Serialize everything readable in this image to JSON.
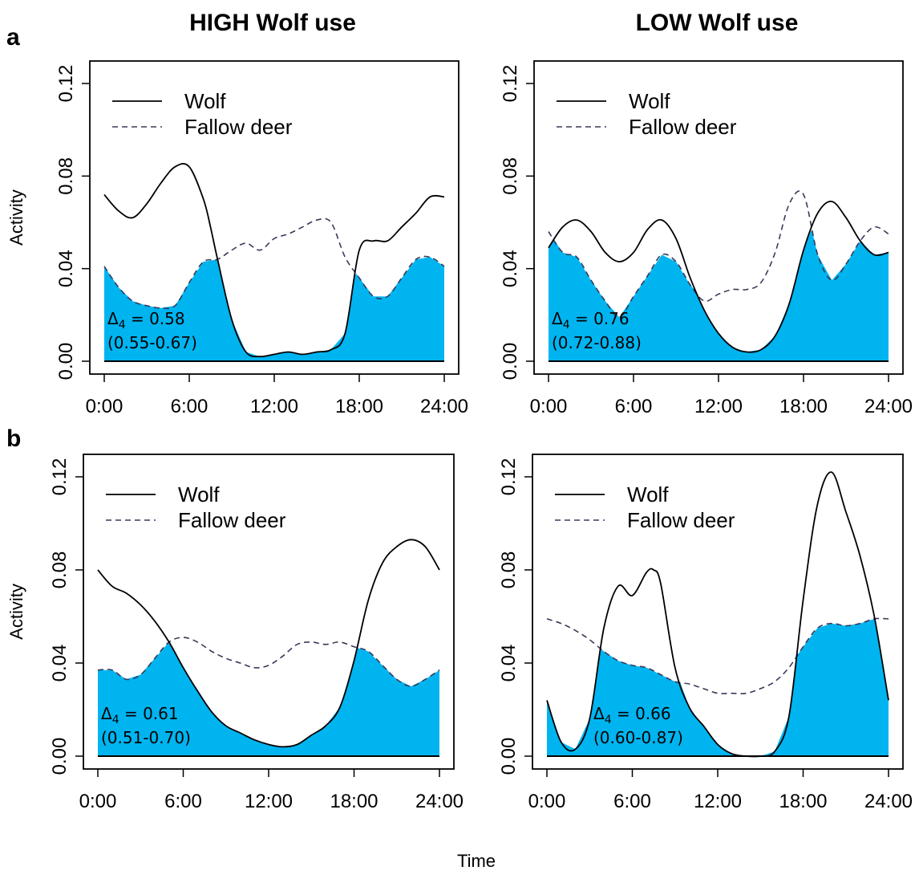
{
  "figure": {
    "col_titles": [
      "HIGH Wolf use",
      "LOW Wolf use"
    ],
    "row_labels": [
      "a",
      "b"
    ],
    "xlabel": "Time",
    "ylabel": "Activity",
    "xtick_labels": [
      "0:00",
      "6:00",
      "12:00",
      "18:00",
      "24:00"
    ],
    "ytick_labels": [
      "0.00",
      "0.04",
      "0.08",
      "0.12"
    ]
  },
  "colors": {
    "overlap_fill": "#00b4f0",
    "wolf_line": "#000000",
    "deer_line": "#3a3a5a"
  },
  "chart_data": [
    {
      "type": "line",
      "row": "a",
      "column": "HIGH Wolf use",
      "xlabel": "",
      "ylabel": "Activity",
      "xlim": [
        0,
        24
      ],
      "ylim": [
        0,
        0.12
      ],
      "xticks": [
        0,
        6,
        12,
        18,
        24
      ],
      "yticks": [
        0,
        0.04,
        0.08,
        0.12
      ],
      "legend_position": "top-left",
      "overlap_label": "Δ4 = 0.58",
      "overlap_ci": "(0.55-0.67)",
      "series": [
        {
          "name": "Wolf",
          "style": "solid",
          "x": [
            0,
            1,
            2,
            3,
            4,
            5,
            6,
            7,
            7.5,
            8,
            9,
            10,
            11,
            12,
            13,
            14,
            15,
            16,
            17,
            18,
            19,
            20,
            21,
            22,
            23,
            24
          ],
          "y": [
            0.072,
            0.065,
            0.062,
            0.068,
            0.077,
            0.084,
            0.084,
            0.07,
            0.058,
            0.044,
            0.018,
            0.004,
            0.002,
            0.003,
            0.004,
            0.003,
            0.004,
            0.005,
            0.012,
            0.048,
            0.052,
            0.052,
            0.058,
            0.064,
            0.071,
            0.071
          ]
        },
        {
          "name": "Fallow deer",
          "style": "dashed",
          "x": [
            0,
            1,
            2,
            3,
            4,
            5,
            6,
            7,
            8,
            9,
            10,
            11,
            12,
            13,
            14,
            15,
            16,
            17,
            18,
            19,
            20,
            21,
            22,
            23,
            24
          ],
          "y": [
            0.041,
            0.032,
            0.026,
            0.024,
            0.023,
            0.024,
            0.034,
            0.043,
            0.044,
            0.048,
            0.051,
            0.048,
            0.053,
            0.055,
            0.058,
            0.061,
            0.06,
            0.045,
            0.036,
            0.028,
            0.028,
            0.036,
            0.044,
            0.045,
            0.041
          ]
        }
      ]
    },
    {
      "type": "line",
      "row": "a",
      "column": "LOW Wolf use",
      "xlabel": "",
      "ylabel": "",
      "xlim": [
        0,
        24
      ],
      "ylim": [
        0,
        0.12
      ],
      "xticks": [
        0,
        6,
        12,
        18,
        24
      ],
      "yticks": [
        0,
        0.04,
        0.08,
        0.12
      ],
      "legend_position": "top-left",
      "overlap_label": "Δ4 = 0.76",
      "overlap_ci": "(0.72-0.88)",
      "series": [
        {
          "name": "Wolf",
          "style": "solid",
          "x": [
            0,
            1,
            2,
            3,
            4,
            5,
            6,
            7,
            8,
            9,
            10,
            11,
            12,
            13,
            14,
            15,
            16,
            17,
            18,
            19,
            20,
            21,
            22,
            23,
            24
          ],
          "y": [
            0.049,
            0.058,
            0.061,
            0.056,
            0.047,
            0.043,
            0.047,
            0.057,
            0.061,
            0.053,
            0.036,
            0.022,
            0.012,
            0.006,
            0.004,
            0.005,
            0.011,
            0.025,
            0.048,
            0.064,
            0.069,
            0.062,
            0.052,
            0.046,
            0.047
          ]
        },
        {
          "name": "Fallow deer",
          "style": "dashed",
          "x": [
            0,
            1,
            2,
            3,
            4,
            5,
            6,
            7,
            8,
            9,
            10,
            11,
            12,
            13,
            14,
            15,
            16,
            17,
            18,
            19,
            20,
            21,
            22,
            23,
            24
          ],
          "y": [
            0.056,
            0.047,
            0.045,
            0.035,
            0.026,
            0.019,
            0.028,
            0.037,
            0.046,
            0.043,
            0.033,
            0.026,
            0.029,
            0.031,
            0.031,
            0.034,
            0.047,
            0.068,
            0.072,
            0.046,
            0.035,
            0.042,
            0.052,
            0.058,
            0.055
          ]
        }
      ]
    },
    {
      "type": "line",
      "row": "b",
      "column": "HIGH Wolf use",
      "xlabel": "",
      "ylabel": "Activity",
      "xlim": [
        0,
        24
      ],
      "ylim": [
        0,
        0.12
      ],
      "xticks": [
        0,
        6,
        12,
        18,
        24
      ],
      "yticks": [
        0,
        0.04,
        0.08,
        0.12
      ],
      "legend_position": "top-left",
      "overlap_label": "Δ4 = 0.61",
      "overlap_ci": "(0.51-0.70)",
      "series": [
        {
          "name": "Wolf",
          "style": "solid",
          "x": [
            0,
            1,
            2,
            3,
            4,
            5,
            6,
            7,
            8,
            9,
            10,
            11,
            12,
            13,
            14,
            15,
            16,
            17,
            18,
            19,
            20,
            21,
            22,
            23,
            24
          ],
          "y": [
            0.08,
            0.073,
            0.07,
            0.065,
            0.058,
            0.049,
            0.038,
            0.028,
            0.019,
            0.013,
            0.01,
            0.007,
            0.005,
            0.004,
            0.005,
            0.009,
            0.013,
            0.021,
            0.041,
            0.067,
            0.083,
            0.09,
            0.093,
            0.09,
            0.08
          ]
        },
        {
          "name": "Fallow deer",
          "style": "dashed",
          "x": [
            0,
            1,
            2,
            3,
            4,
            5,
            6,
            7,
            8,
            9,
            10,
            11,
            12,
            13,
            14,
            15,
            16,
            17,
            18,
            19,
            20,
            21,
            22,
            23,
            24
          ],
          "y": [
            0.037,
            0.037,
            0.033,
            0.035,
            0.042,
            0.049,
            0.051,
            0.049,
            0.045,
            0.042,
            0.04,
            0.038,
            0.039,
            0.043,
            0.048,
            0.049,
            0.048,
            0.049,
            0.047,
            0.045,
            0.039,
            0.033,
            0.03,
            0.033,
            0.037
          ]
        }
      ]
    },
    {
      "type": "line",
      "row": "b",
      "column": "LOW Wolf use",
      "xlabel": "",
      "ylabel": "",
      "xlim": [
        0,
        24
      ],
      "ylim": [
        0,
        0.12
      ],
      "xticks": [
        0,
        6,
        12,
        18,
        24
      ],
      "yticks": [
        0,
        0.04,
        0.08,
        0.12
      ],
      "legend_position": "top-left",
      "overlap_label": "Δ4 = 0.66",
      "overlap_ci": "(0.60-0.87)",
      "series": [
        {
          "name": "Wolf",
          "style": "solid",
          "x": [
            0,
            1,
            2,
            3,
            4,
            5,
            6,
            7,
            7.5,
            8,
            9,
            10,
            11,
            12,
            13,
            14,
            15,
            16,
            17,
            18,
            19,
            20,
            21,
            22,
            23,
            24
          ],
          "y": [
            0.024,
            0.006,
            0.003,
            0.016,
            0.055,
            0.073,
            0.069,
            0.079,
            0.08,
            0.074,
            0.038,
            0.021,
            0.013,
            0.005,
            0.001,
            0.0,
            0.0,
            0.002,
            0.017,
            0.067,
            0.108,
            0.122,
            0.105,
            0.086,
            0.06,
            0.024
          ]
        },
        {
          "name": "Fallow deer",
          "style": "dashed",
          "x": [
            0,
            1,
            2,
            3,
            4,
            5,
            6,
            7,
            8,
            9,
            10,
            11,
            12,
            13,
            14,
            15,
            16,
            17,
            18,
            19,
            20,
            21,
            22,
            23,
            24
          ],
          "y": [
            0.059,
            0.057,
            0.054,
            0.05,
            0.045,
            0.041,
            0.039,
            0.038,
            0.035,
            0.032,
            0.031,
            0.029,
            0.027,
            0.027,
            0.027,
            0.029,
            0.032,
            0.038,
            0.047,
            0.055,
            0.057,
            0.056,
            0.057,
            0.059,
            0.059
          ]
        }
      ]
    }
  ]
}
